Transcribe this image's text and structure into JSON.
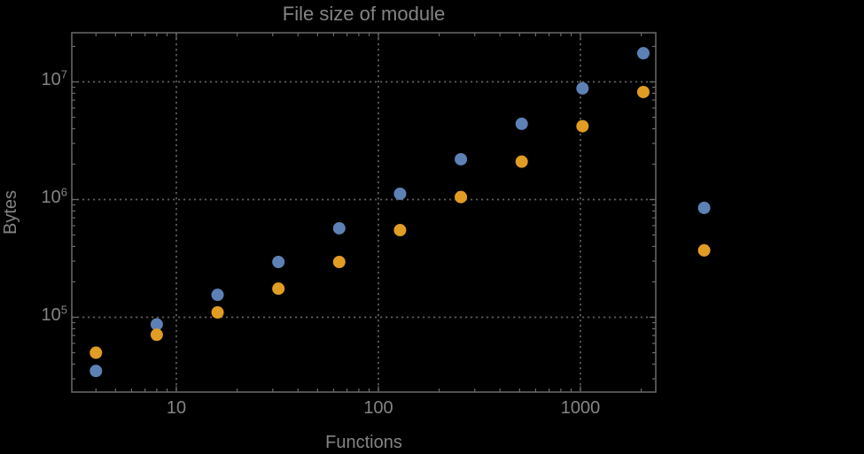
{
  "title": "File size of module",
  "axes": {
    "x_label": "Functions",
    "y_label": "Bytes"
  },
  "colors": {
    "background": "#000000",
    "frame": "#6a6a6a",
    "grid": "#5e5e5e",
    "text": "#848484",
    "series_blue": "#5e81b5",
    "series_orange": "#e19c24"
  },
  "chart_data": {
    "type": "scatter",
    "title": "File size of module",
    "xlabel": "Functions",
    "ylabel": "Bytes",
    "xscale": "log",
    "yscale": "log",
    "xlim": [
      3,
      2360
    ],
    "ylim": [
      23000,
      26000000
    ],
    "grid": "dotted gray lines at decade ticks, frame on all four sides with inward ticks",
    "legend": "none",
    "x_ticks": [
      {
        "label": "10",
        "value": 10
      },
      {
        "label": "100",
        "value": 100
      },
      {
        "label": "1000",
        "value": 1000
      }
    ],
    "y_ticks": [
      {
        "label": "10^5",
        "base": "10",
        "exp": "5",
        "value": 100000
      },
      {
        "label": "10^6",
        "base": "10",
        "exp": "6",
        "value": 1000000
      },
      {
        "label": "10^7",
        "base": "10",
        "exp": "7",
        "value": 10000000
      }
    ],
    "x": [
      4,
      8,
      16,
      32,
      64,
      128,
      256,
      512,
      1024,
      2048,
      4096
    ],
    "series": [
      {
        "name": "blue",
        "color": "#5e81b5",
        "values": [
          35000,
          87000,
          155000,
          295000,
          570000,
          1120000,
          2200000,
          4400000,
          8800000,
          17500000,
          850000
        ]
      },
      {
        "name": "orange",
        "color": "#e19c24",
        "values": [
          50000,
          71000,
          110000,
          175000,
          295000,
          550000,
          1050000,
          2100000,
          4200000,
          8200000,
          370000
        ]
      }
    ]
  }
}
